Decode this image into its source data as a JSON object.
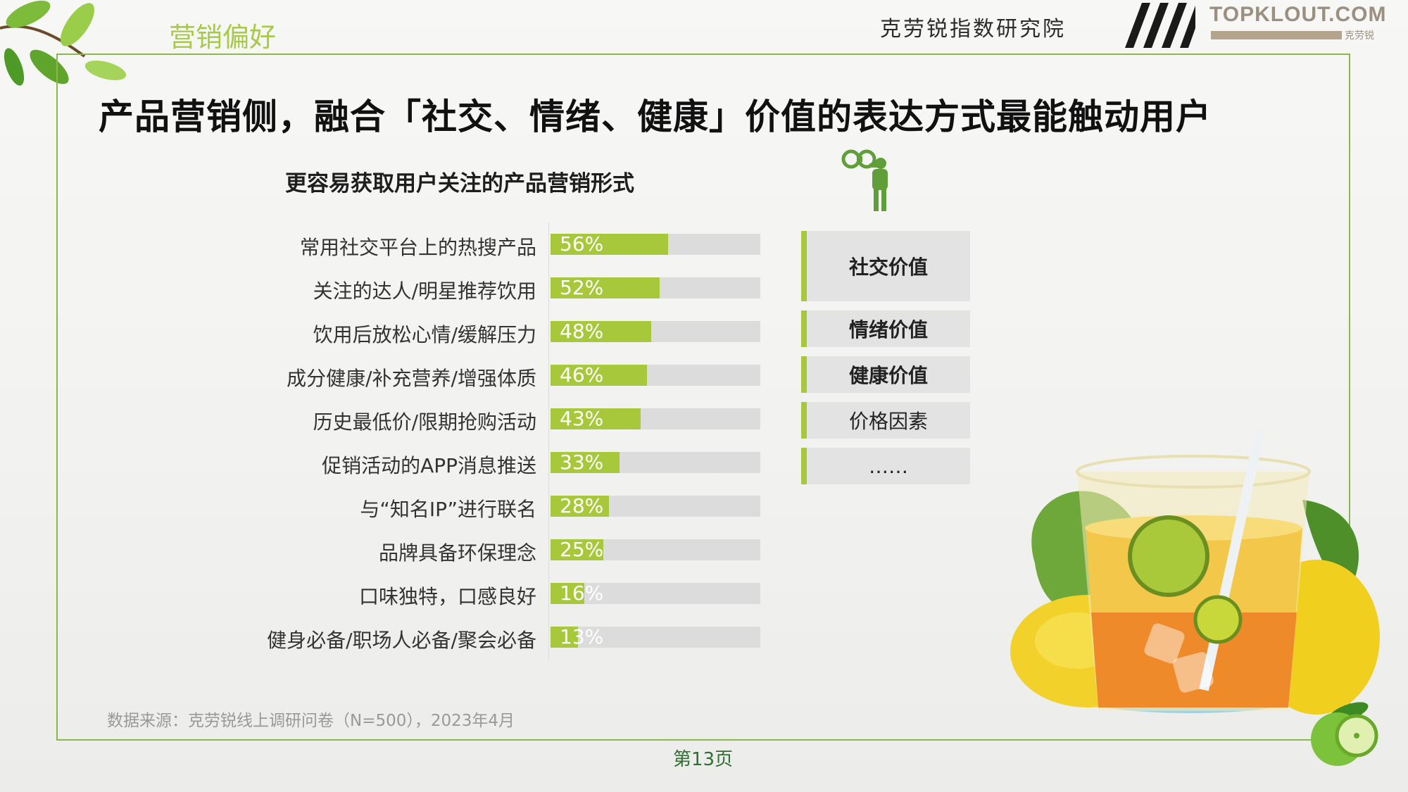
{
  "header": {
    "section_tag": "营销偏好",
    "institute": "克劳锐指数研究院",
    "logo_text": "TOPKLOUT.COM",
    "logo_sub": "克劳锐"
  },
  "page_title": "产品营销侧，融合「社交、情绪、健康」价值的表达方式最能触动用户",
  "colors": {
    "accent": "#a8c83c",
    "frame": "#8ab84c",
    "bar_bg": "#dcdcdc",
    "title": "#111111"
  },
  "chart_data": {
    "type": "bar",
    "orientation": "horizontal",
    "title": "更容易获取用户关注的产品营销形式",
    "categories": [
      "常用社交平台上的热搜产品",
      "关注的达人/明星推荐饮用",
      "饮用后放松心情/缓解压力",
      "成分健康/补充营养/增强体质",
      "历史最低价/限期抢购活动",
      "促销活动的APP消息推送",
      "与“知名IP”进行联名",
      "品牌具备环保理念",
      "口味独特，口感良好",
      "健身必备/职场人必备/聚会必备"
    ],
    "values": [
      56,
      52,
      48,
      46,
      43,
      33,
      28,
      25,
      16,
      13
    ],
    "value_labels": [
      "56%",
      "52%",
      "48%",
      "46%",
      "43%",
      "33%",
      "28%",
      "25%",
      "16%",
      "13%"
    ],
    "xlim": [
      0,
      100
    ]
  },
  "categories_panel": [
    {
      "label": "社交价值",
      "bold": true
    },
    {
      "label": "情绪价值",
      "bold": true
    },
    {
      "label": "健康价值",
      "bold": true
    },
    {
      "label": "价格因素",
      "bold": false
    },
    {
      "label": "……",
      "bold": false
    }
  ],
  "source_note": "数据来源：克劳锐线上调研问卷（N=500），2023年4月",
  "page_number": "第13页",
  "icons": [
    "leaves-icon",
    "binoculars-person-icon",
    "lemon-juice-illustration",
    "lime-icon"
  ]
}
